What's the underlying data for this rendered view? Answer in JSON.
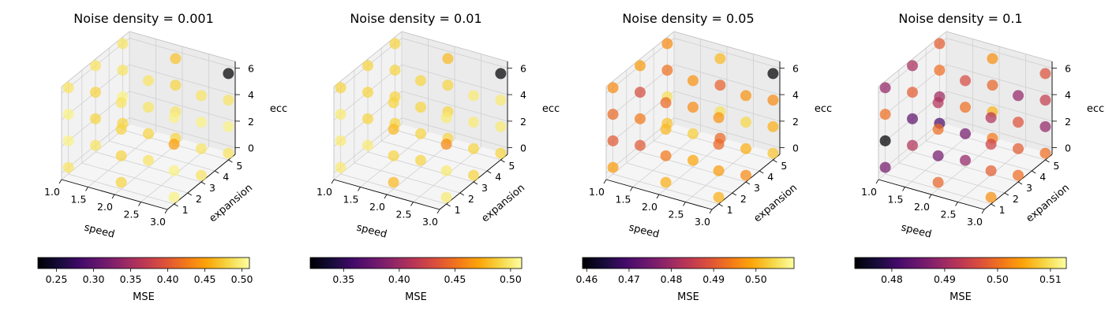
{
  "chart_data": [
    {
      "type": "scatter3d",
      "title": "Noise density = 0.001",
      "xlabel": "speed",
      "ylabel": "expansion",
      "zlabel": "ecc",
      "x_ticks": [
        "1.0",
        "1.5",
        "2.0",
        "2.5",
        "3.0"
      ],
      "y_ticks": [
        "1",
        "2",
        "3",
        "4",
        "5"
      ],
      "z_ticks": [
        "0",
        "2",
        "4",
        "6"
      ],
      "colorbar": {
        "label": "MSE",
        "min": 0.225,
        "max": 0.51,
        "ticks": [
          "0.25",
          "0.30",
          "0.35",
          "0.40",
          "0.45",
          "0.50"
        ],
        "tick_values": [
          0.25,
          0.3,
          0.35,
          0.4,
          0.45,
          0.5
        ]
      },
      "x_values": [
        1,
        2,
        3
      ],
      "y_values": [
        1,
        3,
        5
      ],
      "z_values": [
        0,
        2,
        4,
        6
      ],
      "mse": [
        0.49,
        0.5,
        0.5,
        0.49,
        0.49,
        0.48,
        0.48,
        0.49,
        0.48,
        0.5,
        0.49,
        0.49,
        0.48,
        0.48,
        0.48,
        0.49,
        0.49,
        0.48,
        0.49,
        0.49,
        0.48,
        0.49,
        0.48,
        0.47,
        0.5,
        0.5,
        0.45,
        0.5,
        0.49,
        0.49,
        0.5,
        0.49,
        0.49,
        0.5,
        0.49,
        0.225
      ]
    },
    {
      "type": "scatter3d",
      "title": "Noise density = 0.01",
      "xlabel": "speed",
      "ylabel": "expansion",
      "zlabel": "ecc",
      "x_ticks": [
        "1.0",
        "1.5",
        "2.0",
        "2.5",
        "3.0"
      ],
      "y_ticks": [
        "1",
        "2",
        "3",
        "4",
        "5"
      ],
      "z_ticks": [
        "0",
        "2",
        "4",
        "6"
      ],
      "colorbar": {
        "label": "MSE",
        "min": 0.32,
        "max": 0.51,
        "ticks": [
          "0.35",
          "0.40",
          "0.45",
          "0.50"
        ],
        "tick_values": [
          0.35,
          0.4,
          0.45,
          0.5
        ]
      },
      "x_values": [
        1,
        2,
        3
      ],
      "y_values": [
        1,
        3,
        5
      ],
      "z_values": [
        0,
        2,
        4,
        6
      ],
      "mse": [
        0.5,
        0.5,
        0.5,
        0.49,
        0.5,
        0.49,
        0.49,
        0.49,
        0.49,
        0.49,
        0.49,
        0.49,
        0.48,
        0.49,
        0.48,
        0.49,
        0.49,
        0.49,
        0.49,
        0.49,
        0.49,
        0.49,
        0.49,
        0.48,
        0.5,
        0.5,
        0.46,
        0.5,
        0.49,
        0.49,
        0.5,
        0.5,
        0.49,
        0.5,
        0.5,
        0.32
      ]
    },
    {
      "type": "scatter3d",
      "title": "Noise density = 0.05",
      "xlabel": "speed",
      "ylabel": "expansion",
      "zlabel": "ecc",
      "x_ticks": [
        "1.0",
        "1.5",
        "2.0",
        "2.5",
        "3.0"
      ],
      "y_ticks": [
        "1",
        "2",
        "3",
        "4",
        "5"
      ],
      "z_ticks": [
        "0",
        "2",
        "4",
        "6"
      ],
      "colorbar": {
        "label": "MSE",
        "min": 0.459,
        "max": 0.509,
        "ticks": [
          "0.46",
          "0.47",
          "0.48",
          "0.49",
          "0.50"
        ],
        "tick_values": [
          0.46,
          0.47,
          0.48,
          0.49,
          0.5
        ]
      },
      "x_values": [
        1,
        2,
        3
      ],
      "y_values": [
        1,
        3,
        5
      ],
      "z_values": [
        0,
        2,
        4,
        6
      ],
      "mse": [
        0.498,
        0.49,
        0.492,
        0.496,
        0.49,
        0.494,
        0.488,
        0.498,
        0.502,
        0.505,
        0.493,
        0.496,
        0.5,
        0.494,
        0.501,
        0.492,
        0.499,
        0.503,
        0.496,
        0.497,
        0.492,
        0.505,
        0.491,
        0.501,
        0.5,
        0.498,
        0.492,
        0.497,
        0.496,
        0.5,
        0.504,
        0.497,
        0.502,
        0.5,
        0.496,
        0.459
      ]
    },
    {
      "type": "scatter3d",
      "title": "Noise density = 0.1",
      "xlabel": "speed",
      "ylabel": "expansion",
      "zlabel": "ecc",
      "x_ticks": [
        "1.0",
        "1.5",
        "2.0",
        "2.5",
        "3.0"
      ],
      "y_ticks": [
        "1",
        "2",
        "3",
        "4",
        "5"
      ],
      "z_ticks": [
        "0",
        "2",
        "4",
        "6"
      ],
      "colorbar": {
        "label": "MSE",
        "min": 0.473,
        "max": 0.513,
        "ticks": [
          "0.48",
          "0.49",
          "0.50",
          "0.51"
        ],
        "tick_values": [
          0.48,
          0.49,
          0.5,
          0.51
        ]
      },
      "x_values": [
        1,
        2,
        3
      ],
      "y_values": [
        1,
        3,
        5
      ],
      "z_values": [
        0,
        2,
        4,
        6
      ],
      "mse": [
        0.486,
        0.473,
        0.5,
        0.489,
        0.492,
        0.484,
        0.498,
        0.491,
        0.482,
        0.49,
        0.5,
        0.498,
        0.499,
        0.486,
        0.5,
        0.492,
        0.489,
        0.486,
        0.5,
        0.496,
        0.501,
        0.506,
        0.499,
        0.503,
        0.503,
        0.498,
        0.495,
        0.492,
        0.5,
        0.498,
        0.497,
        0.489,
        0.5,
        0.489,
        0.494,
        0.497
      ]
    }
  ]
}
